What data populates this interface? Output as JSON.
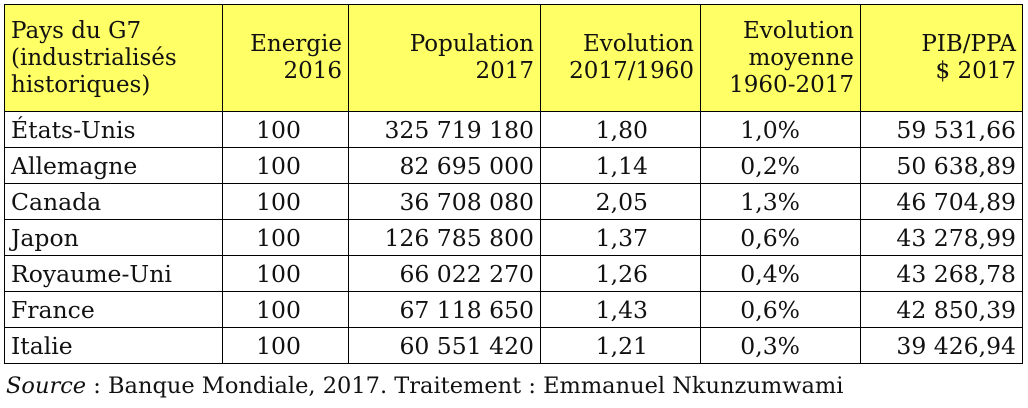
{
  "table": {
    "headers": {
      "country": [
        "Pays du G7",
        "(industrialisés",
        "historiques)"
      ],
      "energy": [
        "Energie",
        "2016"
      ],
      "population": [
        "Population",
        "2017"
      ],
      "evolution": [
        "Evolution",
        "2017/1960"
      ],
      "evolution_avg": [
        "Evolution",
        "moyenne",
        "1960-2017"
      ],
      "pib": [
        "PIB/PPA",
        "$ 2017"
      ]
    },
    "rows": [
      {
        "country": "États-Unis",
        "energy": "100",
        "population": "325 719 180",
        "evolution": "1,80",
        "evolution_avg": "1,0%",
        "pib": "59 531,66"
      },
      {
        "country": "Allemagne",
        "energy": "100",
        "population": "82 695 000",
        "evolution": "1,14",
        "evolution_avg": "0,2%",
        "pib": "50 638,89"
      },
      {
        "country": "Canada",
        "energy": "100",
        "population": "36 708 080",
        "evolution": "2,05",
        "evolution_avg": "1,3%",
        "pib": "46 704,89"
      },
      {
        "country": "Japon",
        "energy": "100",
        "population": "126 785 800",
        "evolution": "1,37",
        "evolution_avg": "0,6%",
        "pib": "43 278,99"
      },
      {
        "country": "Royaume-Uni",
        "energy": "100",
        "population": "66 022 270",
        "evolution": "1,26",
        "evolution_avg": "0,4%",
        "pib": "43 268,78"
      },
      {
        "country": "France",
        "energy": "100",
        "population": "67 118 650",
        "evolution": "1,43",
        "evolution_avg": "0,6%",
        "pib": "42 850,39"
      },
      {
        "country": "Italie",
        "energy": "100",
        "population": "60 551 420",
        "evolution": "1,21",
        "evolution_avg": "0,3%",
        "pib": "39 426,94"
      }
    ],
    "header_color": "#ffff66"
  },
  "source": {
    "label": "Source",
    "text": " : Banque Mondiale, 2017.  Traitement : Emmanuel Nkunzumwami"
  }
}
